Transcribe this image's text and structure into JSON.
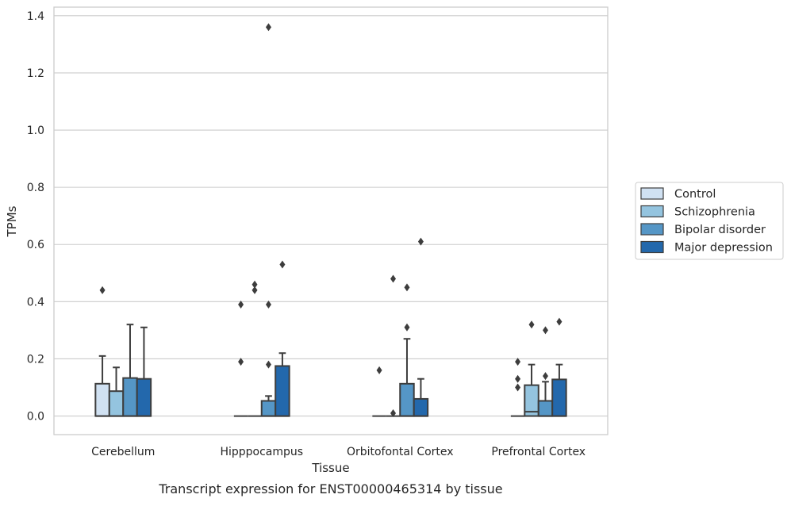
{
  "caption": "Transcript expression for ENST00000465314 by tissue",
  "chart_data": {
    "type": "box",
    "title": "",
    "xlabel": "Tissue",
    "ylabel": "TPMs",
    "ylim": [
      -0.065,
      1.43
    ],
    "yticks": [
      0.0,
      0.2,
      0.4,
      0.6,
      0.8,
      1.0,
      1.2,
      1.4
    ],
    "ytick_labels": [
      "0.0",
      "0.2",
      "0.4",
      "0.6",
      "0.8",
      "1.0",
      "1.2",
      "1.4"
    ],
    "grid": "horizontal",
    "legend_position": "right",
    "categories": [
      "Cerebellum",
      "Hipppocampus",
      "Orbitofontal Cortex",
      "Prefrontal Cortex"
    ],
    "series": [
      {
        "name": "Control",
        "color": "#d0e1f2",
        "boxes": [
          {
            "whislo": 0.0,
            "q1": 0.0,
            "med": 0.0,
            "q3": 0.113,
            "whishi": 0.21,
            "fliers": [
              0.44
            ]
          },
          {
            "whislo": 0.0,
            "q1": 0.0,
            "med": 0.0,
            "q3": 0.0,
            "whishi": 0.0,
            "fliers": [
              0.19,
              0.39
            ]
          },
          {
            "whislo": 0.0,
            "q1": 0.0,
            "med": 0.0,
            "q3": 0.0,
            "whishi": 0.0,
            "fliers": [
              0.16
            ]
          },
          {
            "whislo": 0.0,
            "q1": 0.0,
            "med": 0.0,
            "q3": 0.0,
            "whishi": 0.0,
            "fliers": [
              0.1,
              0.13,
              0.19
            ]
          }
        ]
      },
      {
        "name": "Schizophrenia",
        "color": "#94c4df",
        "boxes": [
          {
            "whislo": 0.0,
            "q1": 0.0,
            "med": 0.0,
            "q3": 0.087,
            "whishi": 0.17,
            "fliers": []
          },
          {
            "whislo": 0.0,
            "q1": 0.0,
            "med": 0.0,
            "q3": 0.0,
            "whishi": 0.0,
            "fliers": [
              0.44,
              0.46
            ]
          },
          {
            "whislo": 0.0,
            "q1": 0.0,
            "med": 0.0,
            "q3": 0.0,
            "whishi": 0.0,
            "fliers": [
              0.01,
              0.48
            ]
          },
          {
            "whislo": 0.0,
            "q1": 0.0,
            "med": 0.015,
            "q3": 0.108,
            "whishi": 0.18,
            "fliers": [
              0.32
            ]
          }
        ]
      },
      {
        "name": "Bipolar disorder",
        "color": "#5596c6",
        "boxes": [
          {
            "whislo": 0.0,
            "q1": 0.0,
            "med": 0.0,
            "q3": 0.133,
            "whishi": 0.32,
            "fliers": []
          },
          {
            "whislo": 0.0,
            "q1": 0.0,
            "med": 0.0,
            "q3": 0.053,
            "whishi": 0.07,
            "fliers": [
              0.18,
              0.39,
              1.36
            ]
          },
          {
            "whislo": 0.0,
            "q1": 0.0,
            "med": 0.0,
            "q3": 0.113,
            "whishi": 0.27,
            "fliers": [
              0.31,
              0.45
            ]
          },
          {
            "whislo": 0.0,
            "q1": 0.0,
            "med": 0.0,
            "q3": 0.053,
            "whishi": 0.12,
            "fliers": [
              0.14,
              0.3
            ]
          }
        ]
      },
      {
        "name": "Major depression",
        "color": "#2368ac",
        "boxes": [
          {
            "whislo": 0.0,
            "q1": 0.0,
            "med": 0.0,
            "q3": 0.13,
            "whishi": 0.31,
            "fliers": []
          },
          {
            "whislo": 0.0,
            "q1": 0.0,
            "med": 0.0,
            "q3": 0.175,
            "whishi": 0.22,
            "fliers": [
              0.53
            ]
          },
          {
            "whislo": 0.0,
            "q1": 0.0,
            "med": 0.0,
            "q3": 0.06,
            "whishi": 0.13,
            "fliers": [
              0.61
            ]
          },
          {
            "whislo": 0.0,
            "q1": 0.0,
            "med": 0.0,
            "q3": 0.128,
            "whishi": 0.18,
            "fliers": [
              0.33
            ]
          }
        ]
      }
    ]
  }
}
